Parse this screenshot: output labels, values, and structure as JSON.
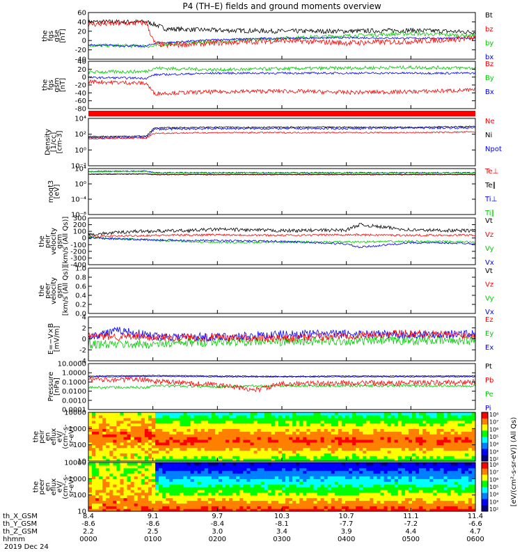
{
  "title": "P4 (TH–E) fields and ground moments overview",
  "date_label": "2019 Dec 24",
  "chart_data": {
    "type": "line",
    "time_ticks": [
      "0000",
      "0100",
      "0200",
      "0300",
      "0400",
      "0500",
      "0600"
    ],
    "ephemeris": [
      {
        "label": "th_X_GSM",
        "values": [
          "8.4",
          "9.1",
          "9.7",
          "10.3",
          "10.7",
          "11.1",
          "11.4"
        ]
      },
      {
        "label": "th_Y_GSM",
        "values": [
          "-8.6",
          "-8.6",
          "-8.4",
          "-8.1",
          "-7.7",
          "-7.2",
          "-6.6"
        ]
      },
      {
        "label": "th_Z_GSM",
        "values": [
          "2.2",
          "2.5",
          "3.0",
          "3.4",
          "3.9",
          "4.4",
          "4.7"
        ]
      },
      {
        "label": "hhmm",
        "values": [
          "0000",
          "0100",
          "0200",
          "0300",
          "0400",
          "0500",
          "0600"
        ]
      }
    ],
    "panels": [
      {
        "id": "fgs-gse",
        "kind": "line",
        "ylabel": [
          "the",
          "fgs",
          "gse",
          "[nT]"
        ],
        "ylim": [
          -40,
          60
        ],
        "log": false,
        "yticks": [
          "60",
          "40",
          "20",
          "0",
          "-20",
          "-40"
        ],
        "legend": [
          {
            "name": "Bt",
            "color": "#000000"
          },
          {
            "name": "bz",
            "color": "#ff0000"
          },
          {
            "name": "by",
            "color": "#00cc00"
          },
          {
            "name": "bx",
            "color": "#0000ff"
          }
        ],
        "series": [
          {
            "name": "Bt",
            "color": "#000000",
            "x": [
              0,
              0.9,
              1.02,
              1.2,
              2,
              3,
              4,
              5,
              6
            ],
            "y": [
              40,
              40,
              35,
              25,
              22,
              20,
              20,
              22,
              18
            ],
            "noise": 5
          },
          {
            "name": "by",
            "color": "#00cc00",
            "x": [
              0,
              0.9,
              1.02,
              1.2,
              2,
              3,
              4,
              5,
              6
            ],
            "y": [
              -10,
              -12,
              -12,
              -8,
              -2,
              5,
              10,
              15,
              10
            ],
            "noise": 4
          },
          {
            "name": "bx",
            "color": "#0000ff",
            "x": [
              0,
              0.9,
              1.02,
              2,
              3,
              4,
              5,
              6
            ],
            "y": [
              -10,
              -12,
              -6,
              2,
              5,
              6,
              5,
              5
            ],
            "noise": 2
          },
          {
            "name": "bz",
            "color": "#ff0000",
            "x": [
              0,
              0.9,
              1.02,
              1.2,
              2,
              3,
              4,
              5,
              6
            ],
            "y": [
              35,
              38,
              -5,
              -10,
              -5,
              0,
              -5,
              -2,
              5
            ],
            "noise": 6
          }
        ]
      },
      {
        "id": "fgs-gsm",
        "kind": "line",
        "ylabel": [
          "the",
          "fgs",
          "gsm",
          "[nT]"
        ],
        "ylim": [
          -90,
          50
        ],
        "log": false,
        "yticks": [
          "40",
          "20",
          "0",
          "-20",
          "-40",
          "-60",
          "-80"
        ],
        "legend": [
          {
            "name": "Bz",
            "color": "#ff0000"
          },
          {
            "name": "By",
            "color": "#00cc00"
          },
          {
            "name": "Bx",
            "color": "#0000ff"
          }
        ],
        "series": [
          {
            "name": "By",
            "color": "#00cc00",
            "x": [
              0,
              0.9,
              1.02,
              2,
              3,
              4,
              5,
              6
            ],
            "y": [
              18,
              20,
              30,
              25,
              28,
              30,
              32,
              30
            ],
            "noise": 5
          },
          {
            "name": "Bx",
            "color": "#0000ff",
            "x": [
              0,
              0.9,
              1.02,
              2,
              3,
              4,
              5,
              6
            ],
            "y": [
              2,
              0,
              10,
              15,
              15,
              15,
              15,
              15
            ],
            "noise": 3
          },
          {
            "name": "Bz",
            "color": "#ff0000",
            "x": [
              0,
              0.9,
              1.02,
              2,
              3,
              4,
              5,
              6
            ],
            "y": [
              -10,
              -15,
              -45,
              -40,
              -38,
              -42,
              -40,
              -35
            ],
            "noise": 6
          }
        ]
      },
      {
        "id": "density",
        "kind": "line",
        "ylabel": [
          "Density",
          "[1/cc]",
          "[cm-3]"
        ],
        "ylim": [
          -3,
          4
        ],
        "log": true,
        "yticks": [
          "10⁴",
          "10²",
          "10⁰",
          "10⁻²"
        ],
        "legend": [
          {
            "name": "Ne",
            "color": "#ff0000"
          },
          {
            "name": "Ni",
            "color": "#000000"
          },
          {
            "name": "Npot",
            "color": "#0000ff"
          }
        ],
        "series": [
          {
            "name": "Ni",
            "color": "#000000",
            "x": [
              0,
              0.9,
              1.02,
              2,
              3,
              4,
              5,
              6
            ],
            "y": [
              1.3,
              1.4,
              2.6,
              2.7,
              2.7,
              2.7,
              2.7,
              2.8
            ],
            "noise": 0.1
          },
          {
            "name": "Npot",
            "color": "#0000ff",
            "x": [
              0,
              0.9,
              1.02,
              2,
              3,
              4,
              5,
              6
            ],
            "y": [
              1.1,
              1.2,
              2.4,
              2.5,
              2.5,
              2.5,
              2.6,
              2.6
            ],
            "noise": 0.15
          },
          {
            "name": "Ne",
            "color": "#ff0000",
            "x": [
              0,
              0.9,
              1.02,
              2,
              3,
              4,
              5,
              6
            ],
            "y": [
              1.0,
              1.1,
              1.8,
              1.9,
              1.9,
              1.9,
              1.9,
              2.0
            ],
            "noise": 0.1
          }
        ]
      },
      {
        "id": "moqt3",
        "kind": "line",
        "ylabel": [
          "moqt3",
          "[eV]"
        ],
        "ylim": [
          -10,
          4.3
        ],
        "log": true,
        "yticks": [
          "10⁴",
          "10⁰",
          "10⁻⁴",
          "10⁻⁸"
        ],
        "legend": [
          {
            "name": "Te⊥",
            "color": "#ff0000"
          },
          {
            "name": "Te∥",
            "color": "#000000"
          },
          {
            "name": "Ti⊥",
            "color": "#0000ff"
          },
          {
            "name": "Ti∥",
            "color": "#00cc00"
          }
        ],
        "series": [
          {
            "name": "Ti⊥",
            "color": "#0000ff",
            "x": [
              0,
              0.9,
              1.02,
              2,
              3,
              4,
              5,
              6
            ],
            "y": [
              3.4,
              3.5,
              3.0,
              3.0,
              3.0,
              3.0,
              3.0,
              3.0
            ],
            "noise": 0.2
          },
          {
            "name": "Ti∥",
            "color": "#00cc00",
            "x": [
              0,
              0.9,
              1.02,
              2,
              3,
              4,
              5,
              6
            ],
            "y": [
              3.3,
              3.4,
              2.9,
              2.9,
              2.9,
              2.9,
              2.9,
              2.9
            ],
            "noise": 0.2
          },
          {
            "name": "Te⊥",
            "color": "#ff0000",
            "x": [
              0,
              0.9,
              1.02,
              2,
              3,
              4,
              5,
              6
            ],
            "y": [
              2.6,
              2.7,
              2.5,
              2.5,
              2.5,
              2.5,
              2.5,
              2.5
            ],
            "noise": 0.1
          },
          {
            "name": "Te∥",
            "color": "#000000",
            "x": [
              0,
              0.9,
              1.02,
              2,
              3,
              4,
              5,
              6
            ],
            "y": [
              2.5,
              2.6,
              2.4,
              2.4,
              2.4,
              2.4,
              2.4,
              2.4
            ],
            "noise": 0.1
          }
        ]
      },
      {
        "id": "peir-velocity",
        "kind": "line",
        "ylabel": [
          "the",
          "peir",
          "velocity",
          "gsm",
          "[km/s (All Qs)]"
        ],
        "ylim": [
          -400,
          300
        ],
        "log": false,
        "yticks": [
          "300",
          "200",
          "100",
          "0",
          "-100",
          "-200",
          "-300",
          "-400"
        ],
        "legend": [
          {
            "name": "Vt",
            "color": "#000000"
          },
          {
            "name": "Vz",
            "color": "#ff0000"
          },
          {
            "name": "Vy",
            "color": "#00cc00"
          },
          {
            "name": "Vx",
            "color": "#0000ff"
          }
        ],
        "series": [
          {
            "name": "Vt",
            "color": "#000000",
            "x": [
              0,
              0.7,
              1.5,
              2,
              3,
              4,
              4.2,
              5,
              6
            ],
            "y": [
              50,
              100,
              110,
              130,
              110,
              120,
              200,
              120,
              110
            ],
            "noise": 25
          },
          {
            "name": "Vz",
            "color": "#ff0000",
            "x": [
              0,
              1,
              2,
              3,
              4,
              5,
              6
            ],
            "y": [
              20,
              40,
              50,
              40,
              50,
              40,
              45
            ],
            "noise": 15
          },
          {
            "name": "Vy",
            "color": "#00cc00",
            "x": [
              0,
              1,
              2,
              3,
              4,
              5,
              6
            ],
            "y": [
              10,
              -30,
              -70,
              -60,
              -60,
              -50,
              -60
            ],
            "noise": 15
          },
          {
            "name": "Vx",
            "color": "#0000ff",
            "x": [
              0,
              1,
              2,
              3,
              4,
              4.2,
              5,
              6
            ],
            "y": [
              0,
              -30,
              -40,
              -50,
              -90,
              -140,
              -70,
              -80
            ],
            "noise": 15
          }
        ]
      },
      {
        "id": "peer-velocity",
        "kind": "line",
        "ylabel": [
          "the",
          "peer",
          "velocity",
          "gsm",
          "[km/s (All Qs)]"
        ],
        "ylim": [
          0,
          1
        ],
        "log": false,
        "yticks": [
          "1.0",
          "0.8",
          "0.6",
          "0.4",
          "0.2",
          "0.0"
        ],
        "legend": [
          {
            "name": "Vt",
            "color": "#000000"
          },
          {
            "name": "Vz",
            "color": "#ff0000"
          },
          {
            "name": "Vy",
            "color": "#00cc00"
          },
          {
            "name": "Vx",
            "color": "#0000ff"
          }
        ],
        "series": []
      },
      {
        "id": "exb",
        "kind": "line",
        "ylabel": [
          "E=−V×B",
          "[mV/m]"
        ],
        "ylim": [
          -4,
          4
        ],
        "log": false,
        "yticks": [
          "4",
          "2",
          "0",
          "-2",
          "-4"
        ],
        "legend": [
          {
            "name": "Ez",
            "color": "#ff0000"
          },
          {
            "name": "Ey",
            "color": "#00cc00"
          },
          {
            "name": "Ex",
            "color": "#0000ff"
          }
        ],
        "series": [
          {
            "name": "Ey",
            "color": "#00cc00",
            "x": [
              0,
              1,
              2,
              3,
              4,
              5,
              6
            ],
            "y": [
              -1,
              -1,
              -0.5,
              -0.5,
              -0.4,
              -0.3,
              -0.3
            ],
            "noise": 0.8
          },
          {
            "name": "Ex",
            "color": "#0000ff",
            "x": [
              0,
              0.5,
              1,
              2,
              3,
              4,
              5,
              6
            ],
            "y": [
              0.5,
              1.5,
              0.5,
              0.3,
              0.8,
              0.9,
              0.8,
              0.9
            ],
            "noise": 0.8
          },
          {
            "name": "Ez",
            "color": "#ff0000",
            "x": [
              0,
              1,
              2,
              3,
              4,
              5,
              6
            ],
            "y": [
              0.5,
              0.3,
              0.2,
              0,
              0.6,
              1.0,
              0.6
            ],
            "noise": 0.7
          }
        ]
      },
      {
        "id": "pressure",
        "kind": "line",
        "ylabel": [
          "Pressure",
          "[nPa]"
        ],
        "ylim": [
          -4,
          1.2
        ],
        "log": true,
        "yticks": [
          "10.0000",
          "1.0000",
          "0.1000",
          "0.0100",
          "0.0010",
          "0.0001"
        ],
        "legend": [
          {
            "name": "Pt",
            "color": "#000000"
          },
          {
            "name": "Pb",
            "color": "#ff0000"
          },
          {
            "name": "Pe",
            "color": "#00cc00"
          },
          {
            "name": "Pi",
            "color": "#0000ff"
          }
        ],
        "series": [
          {
            "name": "Pt",
            "color": "#000000",
            "x": [
              0,
              1,
              2,
              3,
              4,
              5,
              6
            ],
            "y": [
              -0.2,
              -0.15,
              -0.2,
              -0.25,
              -0.2,
              -0.2,
              -0.2
            ],
            "noise": 0.05
          },
          {
            "name": "Pi",
            "color": "#0000ff",
            "x": [
              0,
              1,
              2,
              3,
              4,
              5,
              6
            ],
            "y": [
              -0.3,
              -0.25,
              -0.3,
              -0.3,
              -0.3,
              -0.3,
              -0.3
            ],
            "noise": 0.05
          },
          {
            "name": "Pe",
            "color": "#00cc00",
            "x": [
              0,
              0.9,
              1.02,
              2,
              3,
              4,
              5,
              6
            ],
            "y": [
              -1.5,
              -1.5,
              -1.3,
              -1.4,
              -1.3,
              -1.3,
              -1.3,
              -1.3
            ],
            "noise": 0.15
          },
          {
            "name": "Pb",
            "color": "#ff0000",
            "x": [
              0,
              0.9,
              1.02,
              2,
              2.6,
              3,
              4,
              5,
              6
            ],
            "y": [
              -0.6,
              -0.6,
              -0.8,
              -1.2,
              -1.8,
              -1.1,
              -1.0,
              -1.0,
              -0.9
            ],
            "noise": 0.3
          }
        ]
      },
      {
        "id": "peir-eflux",
        "kind": "heatmap",
        "ylabel": [
          "the",
          "peir",
          "en",
          "eflux",
          "eV/",
          "(cm²-s-",
          "sr-eV)"
        ],
        "ylim": [
          1,
          4.2
        ],
        "log": true,
        "yticks": [
          "10000",
          "1000",
          "100",
          "10"
        ]
      },
      {
        "id": "peer-eflux",
        "kind": "heatmap",
        "ylabel": [
          "the",
          "peer",
          "en",
          "eflux",
          "eV/",
          "(cm²-s-",
          "sr-eV)"
        ],
        "ylim": [
          1,
          4.2
        ],
        "log": true,
        "yticks": [
          "10000",
          "1000",
          "100",
          "10"
        ]
      }
    ],
    "colorbar": {
      "label": "[eV/(cm²-s-sr-eV)] (All Qs)",
      "ticks": [
        "10⁸",
        "10⁷",
        "10⁶",
        "10⁵",
        "10⁴",
        "10³",
        "10²"
      ],
      "colors": [
        "#ff0000",
        "#ff8000",
        "#ffff00",
        "#00ff00",
        "#00ffff",
        "#0080ff",
        "#0000ff",
        "#000080"
      ]
    }
  }
}
